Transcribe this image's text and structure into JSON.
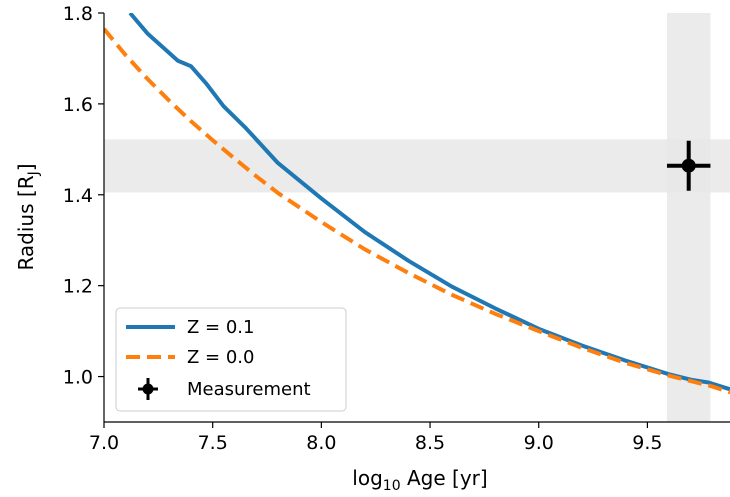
{
  "chart_data": {
    "type": "line",
    "xlabel_prefix": "log",
    "xlabel_sub": "10",
    "xlabel_suffix": " Age [yr]",
    "ylabel_prefix": "Radius [R",
    "ylabel_sub": "J",
    "ylabel_suffix": "]",
    "xlim": [
      7.0,
      9.88
    ],
    "ylim": [
      0.9,
      1.8
    ],
    "xticks": [
      7.0,
      7.5,
      8.0,
      8.5,
      9.0,
      9.5
    ],
    "xtick_labels": [
      "7.0",
      "7.5",
      "8.0",
      "8.5",
      "9.0",
      "9.5"
    ],
    "yticks": [
      1.0,
      1.2,
      1.4,
      1.6,
      1.8
    ],
    "ytick_labels": [
      "1.0",
      "1.2",
      "1.4",
      "1.6",
      "1.8"
    ],
    "legend_position": "lower-left",
    "series": [
      {
        "name": "Z = 0.1",
        "color": "#1f77b4",
        "style": "solid",
        "x": [
          7.12,
          7.2,
          7.27,
          7.34,
          7.4,
          7.47,
          7.55,
          7.65,
          7.8,
          8.0,
          8.2,
          8.4,
          8.6,
          8.8,
          9.0,
          9.2,
          9.4,
          9.6,
          9.7,
          9.78,
          9.88
        ],
        "y": [
          1.8,
          1.755,
          1.725,
          1.695,
          1.683,
          1.645,
          1.595,
          1.548,
          1.47,
          1.392,
          1.318,
          1.255,
          1.198,
          1.15,
          1.105,
          1.068,
          1.035,
          1.005,
          0.993,
          0.987,
          0.972
        ]
      },
      {
        "name": "Z = 0.0",
        "color": "#ff7f0e",
        "style": "dashed",
        "x": [
          7.0,
          7.1,
          7.2,
          7.3,
          7.4,
          7.5,
          7.6,
          7.7,
          7.8,
          8.0,
          8.2,
          8.4,
          8.6,
          8.8,
          9.0,
          9.2,
          9.4,
          9.6,
          9.7,
          9.8,
          9.88
        ],
        "y": [
          1.765,
          1.707,
          1.655,
          1.607,
          1.562,
          1.52,
          1.48,
          1.441,
          1.404,
          1.34,
          1.28,
          1.228,
          1.18,
          1.138,
          1.1,
          1.063,
          1.03,
          1.002,
          0.99,
          0.978,
          0.965
        ]
      }
    ],
    "measurement": {
      "name": "Measurement",
      "color": "#000000",
      "x": 9.69,
      "y": 1.464,
      "xerr": 0.1,
      "yerr": 0.055
    },
    "shaded_bands": [
      {
        "axis": "y",
        "range": [
          1.405,
          1.522
        ],
        "color": "#e8e8e8"
      },
      {
        "axis": "x",
        "range": [
          9.59,
          9.79
        ],
        "color": "#e8e8e8"
      }
    ]
  }
}
